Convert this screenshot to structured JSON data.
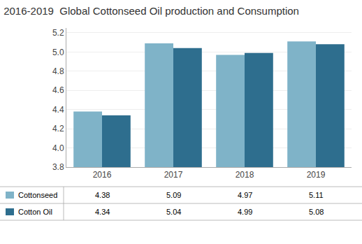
{
  "chart_data": {
    "type": "bar",
    "title": "2016-2019  Global Cottonseed Oil production and Consumption",
    "categories": [
      "2016",
      "2017",
      "2018",
      "2019"
    ],
    "series": [
      {
        "name": "Cottonseed",
        "color": "#7fb3c8",
        "values": [
          4.38,
          5.09,
          4.97,
          5.11
        ]
      },
      {
        "name": "Cotton Oil",
        "color": "#2e6e8e",
        "values": [
          4.34,
          5.04,
          4.99,
          5.08
        ]
      }
    ],
    "ylim": [
      3.8,
      5.25
    ],
    "yticks": [
      3.8,
      {
        "value": 4.0,
        "label": "4.0"
      },
      4.2,
      4.4,
      4.6,
      4.8,
      {
        "value": 5.0,
        "label": "5.0"
      },
      5.2
    ],
    "grid": true,
    "legend": "bottom",
    "data_labels": true
  }
}
